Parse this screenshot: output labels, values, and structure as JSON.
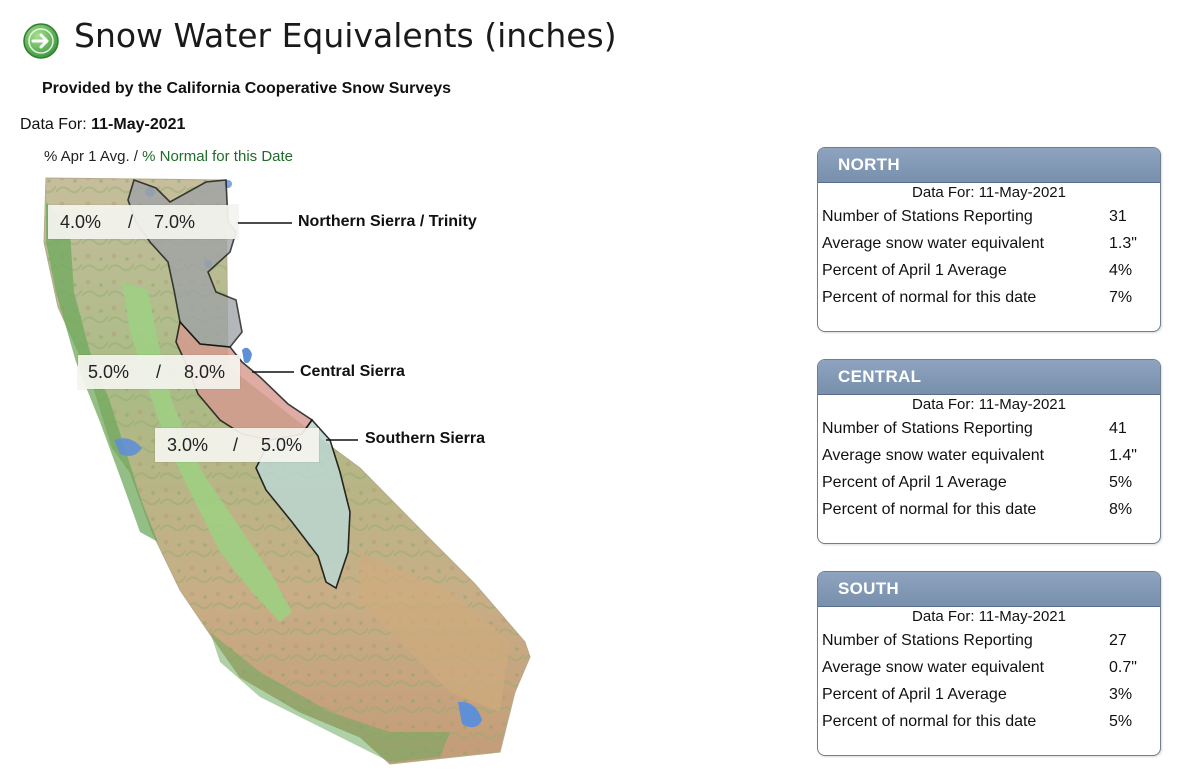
{
  "header": {
    "title": "Snow Water Equivalents (inches)",
    "subtitle": "Provided by the California Cooperative Snow Surveys",
    "date_prefix": "Data For:",
    "date": "11-May-2021",
    "legend_prefix": "% Apr 1 Avg. / ",
    "legend_suffix": "% Normal for this Date",
    "icon": "arrow-right-circle-icon",
    "icon_color": "#5cb85c"
  },
  "map": {
    "regions": [
      {
        "name": "Northern Sierra / Trinity",
        "apr1": "4.0%",
        "sep": "/",
        "normal": "7.0%"
      },
      {
        "name": "Central Sierra",
        "apr1": "5.0%",
        "sep": "/",
        "normal": "8.0%"
      },
      {
        "name": "Southern Sierra",
        "apr1": "3.0%",
        "sep": "/",
        "normal": "5.0%"
      }
    ]
  },
  "panels": [
    {
      "title": "NORTH",
      "date_line": "Data For: 11-May-2021",
      "rows": [
        {
          "label": "Number of Stations Reporting",
          "value": "31"
        },
        {
          "label": "Average snow water equivalent",
          "value": "1.3\""
        },
        {
          "label": "Percent of April 1 Average",
          "value": "4%"
        },
        {
          "label": "Percent of normal for this date",
          "value": "7%"
        }
      ]
    },
    {
      "title": "CENTRAL",
      "date_line": "Data For: 11-May-2021",
      "rows": [
        {
          "label": "Number of Stations Reporting",
          "value": "41"
        },
        {
          "label": "Average snow water equivalent",
          "value": "1.4\""
        },
        {
          "label": "Percent of April 1 Average",
          "value": "5%"
        },
        {
          "label": "Percent of normal for this date",
          "value": "8%"
        }
      ]
    },
    {
      "title": "SOUTH",
      "date_line": "Data For: 11-May-2021",
      "rows": [
        {
          "label": "Number of Stations Reporting",
          "value": "27"
        },
        {
          "label": "Average snow water equivalent",
          "value": "0.7\""
        },
        {
          "label": "Percent of April 1 Average",
          "value": "3%"
        },
        {
          "label": "Percent of normal for this date",
          "value": "5%"
        }
      ]
    }
  ],
  "colors": {
    "panel_header": "#7f95b2",
    "panel_border": "#6e7f92",
    "north_region": "#9fa3a6",
    "central_region": "#d79a90",
    "south_region": "#bcd6cf",
    "lowland": "#7fb36a",
    "valley": "#9dc784",
    "upland": "#c9b793",
    "water": "#5f8fd6"
  }
}
